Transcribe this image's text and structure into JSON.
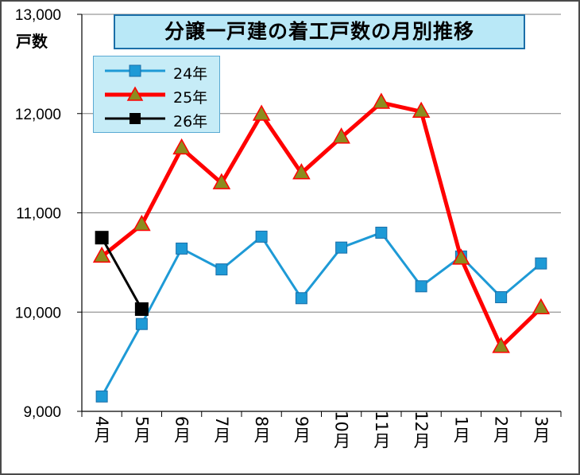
{
  "chart_data": {
    "type": "line",
    "title": "分譲一戸建の着工戸数の月別推移",
    "ylabel": "戸数",
    "xlabel": "",
    "categories": [
      "4月",
      "5月",
      "6月",
      "7月",
      "8月",
      "9月",
      "10月",
      "11月",
      "12月",
      "1月",
      "2月",
      "3月"
    ],
    "ylim": [
      9000,
      13000
    ],
    "yticks": [
      9000,
      10000,
      11000,
      12000,
      13000
    ],
    "ytick_labels": [
      "9,000",
      "10,000",
      "11,000",
      "12,000",
      "13,000"
    ],
    "grid": true,
    "legend_position": "top-left",
    "series": [
      {
        "name": "24年",
        "color": "#1e9ad6",
        "marker": "square",
        "values": [
          9150,
          9880,
          10640,
          10430,
          10760,
          10140,
          10650,
          10800,
          10260,
          10560,
          10150,
          10490
        ]
      },
      {
        "name": "25年",
        "color": "#ff0000",
        "marker": "triangle",
        "marker_fill": "#8c8c1e",
        "values": [
          10560,
          10880,
          11650,
          11300,
          11990,
          11400,
          11760,
          12110,
          12020,
          10540,
          9650,
          10040
        ]
      },
      {
        "name": "26年",
        "color": "#000000",
        "marker": "square",
        "values": [
          10750,
          10030,
          null,
          null,
          null,
          null,
          null,
          null,
          null,
          null,
          null,
          null
        ]
      }
    ]
  }
}
